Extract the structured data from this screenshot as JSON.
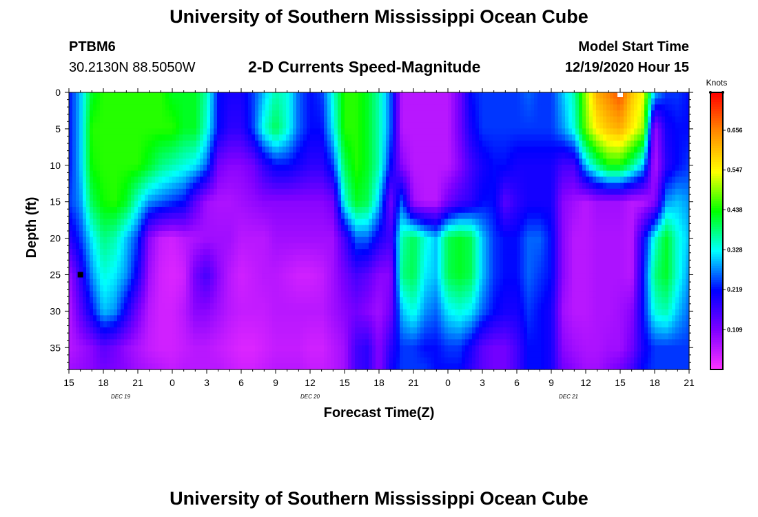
{
  "header": {
    "title": "University of Southern Mississippi Ocean Cube",
    "station": "PTBM6",
    "location": "30.2130N 88.5050W",
    "plot_title": "2-D Currents Speed-Magnitude",
    "model_start_label": "Model Start Time",
    "model_start_value": "12/19/2020 Hour 15"
  },
  "footer": {
    "title": "University of Southern Mississippi Ocean Cube"
  },
  "chart_data": {
    "type": "heatmap",
    "title": "2-D Currents Speed-Magnitude",
    "xlabel": "Forecast Time(Z)",
    "ylabel": "Depth (ft)",
    "x_tick_labels": [
      "15",
      "18",
      "21",
      "0",
      "3",
      "6",
      "9",
      "12",
      "15",
      "18",
      "21",
      "0",
      "3",
      "6",
      "9",
      "12",
      "15",
      "18",
      "21"
    ],
    "x_hours": [
      0,
      3,
      6,
      9,
      12,
      15,
      18,
      21,
      24,
      27,
      30,
      33,
      36,
      39,
      42,
      45,
      48,
      51,
      54
    ],
    "date_labels": [
      {
        "text": "DEC 19",
        "hour": 4.5
      },
      {
        "text": "DEC 20",
        "hour": 21
      },
      {
        "text": "DEC 21",
        "hour": 43.5
      }
    ],
    "y_ticks": [
      0,
      5,
      10,
      15,
      20,
      25,
      30,
      35
    ],
    "ylim": [
      0,
      38
    ],
    "xlim_hours": [
      0,
      54
    ],
    "colorbar": {
      "label": "Knots",
      "ticks": [
        "0.109",
        "0.219",
        "0.328",
        "0.438",
        "0.547",
        "0.656"
      ],
      "tick_values": [
        0.109,
        0.219,
        0.328,
        0.438,
        0.547,
        0.656
      ],
      "range": [
        0,
        0.76
      ],
      "colors": [
        "#ff33ff",
        "#7f00ff",
        "#0000ff",
        "#00ffff",
        "#00ff00",
        "#ffff00",
        "#ff8c00",
        "#ff0000"
      ]
    },
    "columns_hours": [
      0,
      1,
      2,
      3,
      4,
      5,
      6,
      7,
      8,
      9,
      10,
      11,
      12,
      13,
      14,
      15,
      16,
      17,
      18,
      19,
      20,
      21,
      22,
      23,
      24,
      25,
      26,
      27,
      28,
      29,
      30,
      31,
      32,
      33,
      34,
      35,
      36,
      37,
      38,
      39,
      40,
      41,
      42,
      43,
      44,
      45,
      46,
      47,
      48,
      49,
      50,
      51,
      52,
      53,
      54
    ],
    "depths": [
      0,
      5,
      10,
      15,
      20,
      25,
      30,
      35,
      38
    ],
    "speed_knots": [
      [
        0.22,
        0.3,
        0.42,
        0.45,
        0.45,
        0.45,
        0.45,
        0.45,
        0.45,
        0.42,
        0.42,
        0.42,
        0.36,
        0.22,
        0.2,
        0.2,
        0.24,
        0.3,
        0.36,
        0.34,
        0.26,
        0.22,
        0.24,
        0.34,
        0.45,
        0.45,
        0.42,
        0.36,
        0.26,
        0.06,
        0.06,
        0.06,
        0.06,
        0.06,
        0.12,
        0.22,
        0.24,
        0.24,
        0.24,
        0.24,
        0.26,
        0.24,
        0.24,
        0.3,
        0.36,
        0.5,
        0.62,
        0.66,
        0.7,
        0.6,
        0.54,
        0.3,
        0.24,
        0.24,
        0.22
      ],
      [
        0.22,
        0.3,
        0.45,
        0.45,
        0.45,
        0.45,
        0.45,
        0.45,
        0.45,
        0.45,
        0.42,
        0.42,
        0.34,
        0.22,
        0.18,
        0.18,
        0.24,
        0.34,
        0.4,
        0.34,
        0.26,
        0.22,
        0.22,
        0.32,
        0.45,
        0.45,
        0.42,
        0.36,
        0.26,
        0.06,
        0.06,
        0.06,
        0.06,
        0.06,
        0.12,
        0.2,
        0.24,
        0.24,
        0.24,
        0.24,
        0.24,
        0.24,
        0.24,
        0.28,
        0.34,
        0.48,
        0.56,
        0.6,
        0.62,
        0.56,
        0.5,
        0.08,
        0.2,
        0.22,
        0.22
      ],
      [
        0.22,
        0.3,
        0.44,
        0.45,
        0.45,
        0.45,
        0.45,
        0.42,
        0.38,
        0.36,
        0.34,
        0.32,
        0.26,
        0.12,
        0.1,
        0.1,
        0.12,
        0.18,
        0.22,
        0.22,
        0.2,
        0.18,
        0.18,
        0.24,
        0.4,
        0.45,
        0.42,
        0.36,
        0.22,
        0.1,
        0.06,
        0.06,
        0.06,
        0.06,
        0.1,
        0.16,
        0.2,
        0.22,
        0.22,
        0.2,
        0.2,
        0.2,
        0.2,
        0.16,
        0.16,
        0.3,
        0.38,
        0.44,
        0.44,
        0.38,
        0.3,
        0.06,
        0.18,
        0.22,
        0.24
      ],
      [
        0.24,
        0.28,
        0.4,
        0.44,
        0.45,
        0.42,
        0.34,
        0.28,
        0.26,
        0.24,
        0.22,
        0.14,
        0.08,
        0.07,
        0.07,
        0.08,
        0.09,
        0.1,
        0.1,
        0.1,
        0.1,
        0.1,
        0.1,
        0.12,
        0.34,
        0.42,
        0.4,
        0.3,
        0.12,
        0.26,
        0.08,
        0.06,
        0.06,
        0.12,
        0.16,
        0.18,
        0.22,
        0.22,
        0.14,
        0.18,
        0.2,
        0.2,
        0.2,
        0.1,
        0.08,
        0.06,
        0.08,
        0.08,
        0.08,
        0.06,
        0.06,
        0.1,
        0.28,
        0.3,
        0.28
      ],
      [
        0.18,
        0.24,
        0.32,
        0.38,
        0.36,
        0.3,
        0.24,
        0.1,
        0.05,
        0.04,
        0.06,
        0.07,
        0.08,
        0.08,
        0.08,
        0.06,
        0.06,
        0.06,
        0.08,
        0.08,
        0.08,
        0.08,
        0.08,
        0.08,
        0.16,
        0.26,
        0.26,
        0.2,
        0.16,
        0.36,
        0.4,
        0.34,
        0.3,
        0.4,
        0.42,
        0.4,
        0.3,
        0.24,
        0.22,
        0.22,
        0.26,
        0.26,
        0.22,
        0.1,
        0.06,
        0.06,
        0.07,
        0.07,
        0.07,
        0.06,
        0.2,
        0.34,
        0.42,
        0.34,
        0.3
      ],
      [
        0.08,
        0.18,
        0.28,
        0.34,
        0.32,
        0.28,
        0.2,
        0.08,
        0.04,
        0.03,
        0.04,
        0.12,
        0.16,
        0.1,
        0.06,
        0.04,
        0.05,
        0.06,
        0.06,
        0.05,
        0.04,
        0.04,
        0.05,
        0.08,
        0.12,
        0.16,
        0.14,
        0.1,
        0.1,
        0.38,
        0.4,
        0.32,
        0.3,
        0.4,
        0.42,
        0.4,
        0.3,
        0.24,
        0.22,
        0.22,
        0.26,
        0.24,
        0.22,
        0.1,
        0.06,
        0.06,
        0.07,
        0.07,
        0.07,
        0.06,
        0.22,
        0.38,
        0.42,
        0.34,
        0.28
      ],
      [
        0.06,
        0.14,
        0.22,
        0.3,
        0.28,
        0.2,
        0.12,
        0.06,
        0.04,
        0.04,
        0.06,
        0.1,
        0.1,
        0.08,
        0.06,
        0.05,
        0.05,
        0.05,
        0.06,
        0.06,
        0.06,
        0.06,
        0.06,
        0.08,
        0.1,
        0.12,
        0.1,
        0.08,
        0.12,
        0.3,
        0.34,
        0.28,
        0.26,
        0.32,
        0.34,
        0.32,
        0.26,
        0.22,
        0.2,
        0.2,
        0.24,
        0.22,
        0.2,
        0.08,
        0.06,
        0.06,
        0.07,
        0.07,
        0.08,
        0.1,
        0.22,
        0.34,
        0.36,
        0.3,
        0.26
      ],
      [
        0.06,
        0.08,
        0.1,
        0.14,
        0.12,
        0.09,
        0.07,
        0.05,
        0.04,
        0.04,
        0.05,
        0.06,
        0.06,
        0.05,
        0.04,
        0.03,
        0.03,
        0.04,
        0.05,
        0.05,
        0.05,
        0.04,
        0.04,
        0.06,
        0.08,
        0.16,
        0.18,
        0.1,
        0.18,
        0.24,
        0.24,
        0.22,
        0.22,
        0.24,
        0.24,
        0.2,
        0.14,
        0.12,
        0.12,
        0.16,
        0.22,
        0.22,
        0.2,
        0.1,
        0.08,
        0.07,
        0.07,
        0.08,
        0.08,
        0.12,
        0.2,
        0.24,
        0.24,
        0.24,
        0.24
      ],
      [
        0.08,
        0.09,
        0.1,
        0.12,
        0.11,
        0.1,
        0.08,
        0.07,
        0.06,
        0.05,
        0.06,
        0.06,
        0.06,
        0.06,
        0.05,
        0.04,
        0.04,
        0.05,
        0.06,
        0.06,
        0.06,
        0.05,
        0.05,
        0.06,
        0.08,
        0.16,
        0.18,
        0.1,
        0.2,
        0.24,
        0.24,
        0.24,
        0.22,
        0.22,
        0.22,
        0.18,
        0.14,
        0.12,
        0.12,
        0.16,
        0.22,
        0.22,
        0.2,
        0.12,
        0.1,
        0.08,
        0.08,
        0.1,
        0.12,
        0.16,
        0.22,
        0.24,
        0.24,
        0.24,
        0.24
      ]
    ],
    "markers": [
      {
        "label": "black-square",
        "hour": 1,
        "depth": 25
      },
      {
        "label": "white-square",
        "hour": 48,
        "depth": 0
      }
    ]
  }
}
